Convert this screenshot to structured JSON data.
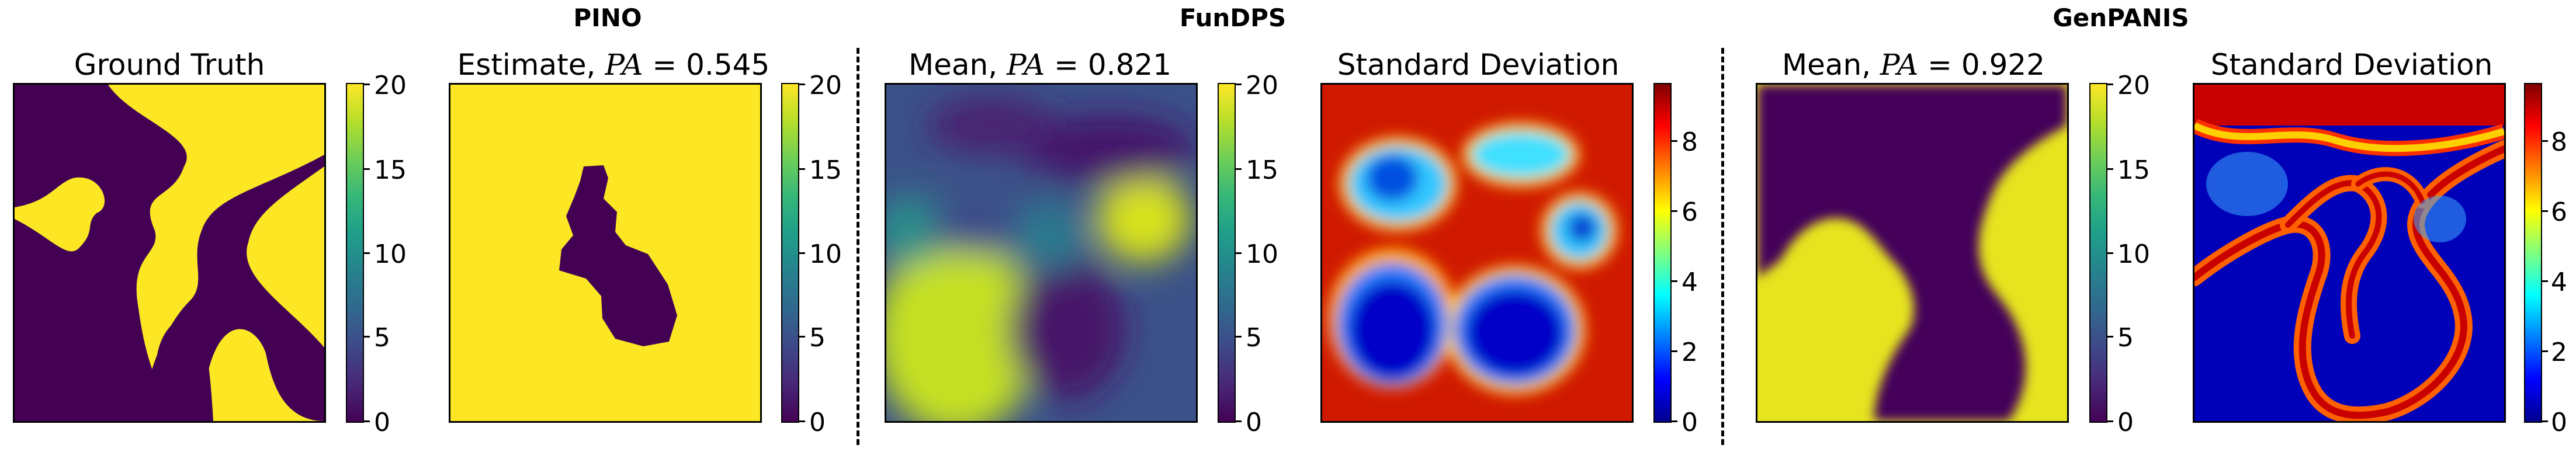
{
  "groups": {
    "pino": "PINO",
    "fundps": "FunDPS",
    "genpanis": "GenPANIS"
  },
  "panels": {
    "ground_truth": {
      "title": "Ground Truth"
    },
    "pino_estimate": {
      "title_prefix": "Estimate, ",
      "var": "PA",
      "eq": " = 0.545"
    },
    "fundps_mean": {
      "title_prefix": "Mean, ",
      "var": "PA",
      "eq": " = 0.821"
    },
    "fundps_std": {
      "title": "Standard Deviation"
    },
    "genpanis_mean": {
      "title_prefix": "Mean, ",
      "var": "PA",
      "eq": " = 0.922"
    },
    "genpanis_std": {
      "title": "Standard Deviation"
    }
  },
  "chart_data": [
    {
      "type": "heatmap",
      "title": "Ground Truth",
      "colormap": "viridis",
      "clim": [
        0,
        20
      ],
      "colorbar_ticks": [
        "0",
        "5",
        "10",
        "15",
        "20"
      ]
    },
    {
      "type": "heatmap",
      "title": "Estimate, PA = 0.545",
      "colormap": "viridis",
      "clim": [
        0,
        20
      ],
      "colorbar_ticks": [
        "0",
        "5",
        "10",
        "15",
        "20"
      ]
    },
    {
      "type": "heatmap",
      "title": "Mean, PA = 0.821",
      "colormap": "viridis",
      "clim": [
        0,
        20
      ],
      "colorbar_ticks": [
        "0",
        "5",
        "10",
        "15",
        "20"
      ]
    },
    {
      "type": "heatmap",
      "title": "Standard Deviation",
      "colormap": "jet",
      "clim": [
        0,
        9.6
      ],
      "colorbar_ticks": [
        "0",
        "2",
        "4",
        "6",
        "8"
      ]
    },
    {
      "type": "heatmap",
      "title": "Mean, PA = 0.922",
      "colormap": "viridis",
      "clim": [
        0,
        20
      ],
      "colorbar_ticks": [
        "0",
        "5",
        "10",
        "15",
        "20"
      ]
    },
    {
      "type": "heatmap",
      "title": "Standard Deviation",
      "colormap": "jet",
      "clim": [
        0,
        9.6
      ],
      "colorbar_ticks": [
        "0",
        "2",
        "4",
        "6",
        "8"
      ]
    }
  ],
  "colors": {
    "viridis_low": "#440154",
    "viridis_high": "#fde725",
    "jet_low": "#00008f",
    "jet_high": "#800000"
  }
}
